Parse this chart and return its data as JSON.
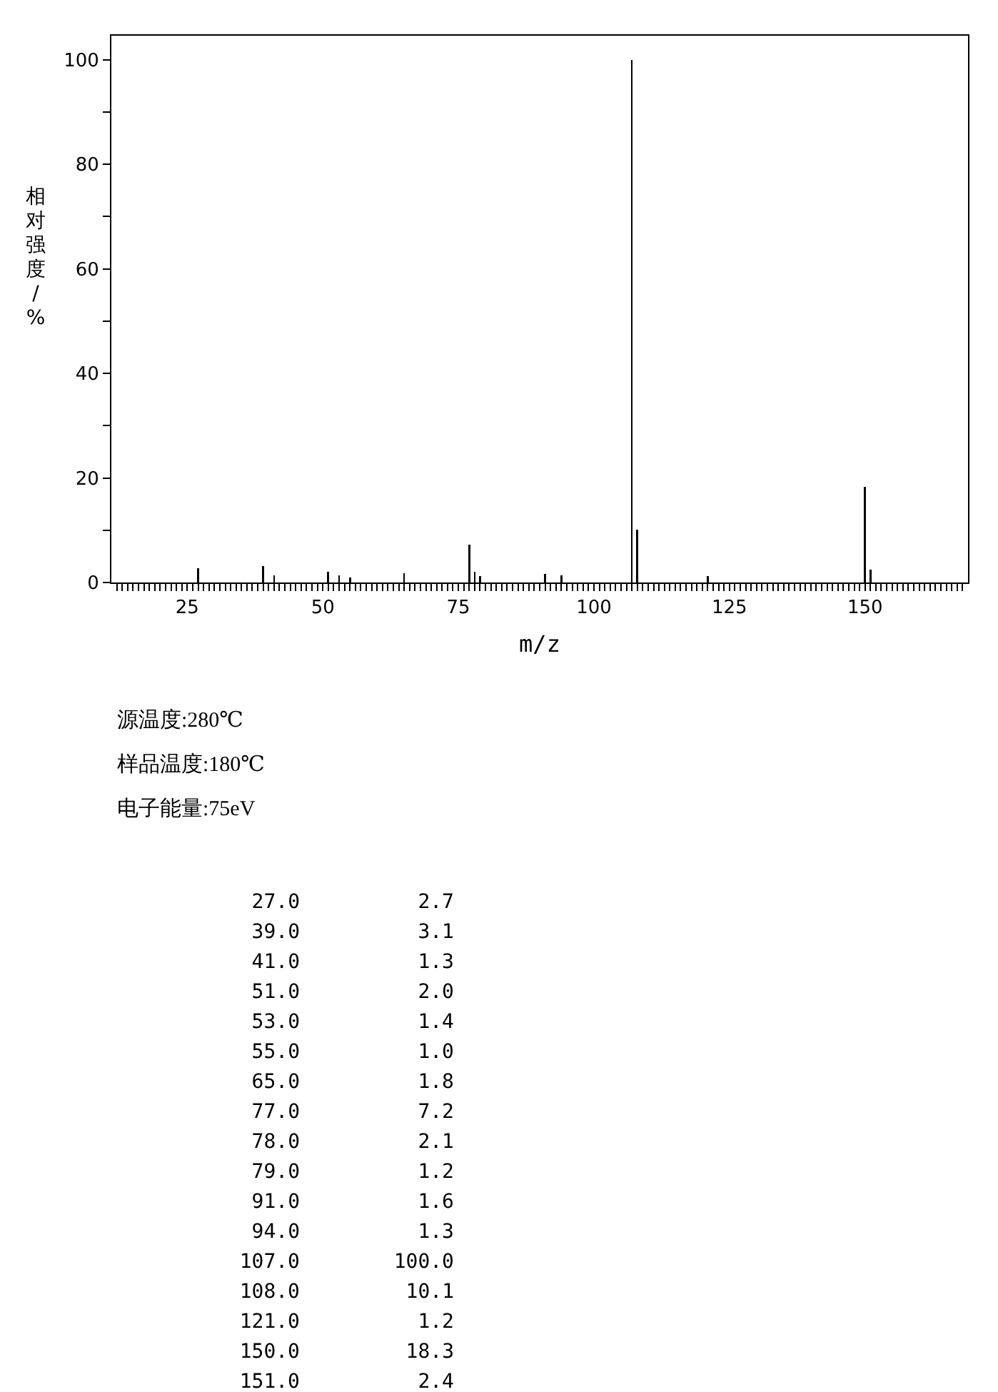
{
  "chart_data": {
    "type": "bar",
    "xlabel": "m/z",
    "ylabel": "相对强度/%",
    "x": [
      27,
      39,
      41,
      51,
      53,
      55,
      65,
      77,
      78,
      79,
      91,
      94,
      107,
      108,
      121,
      150,
      151
    ],
    "values": [
      2.7,
      3.1,
      1.3,
      2.0,
      1.4,
      1.0,
      1.8,
      7.2,
      2.1,
      1.2,
      1.6,
      1.3,
      100.0,
      10.1,
      1.2,
      18.3,
      2.4
    ],
    "color": "#000000",
    "xlim": [
      11,
      169
    ],
    "ylim": [
      0,
      104.6
    ],
    "xticks": [
      {
        "value": 12,
        "label": null
      },
      {
        "value": 13,
        "label": null
      },
      {
        "value": 14,
        "label": null
      },
      {
        "value": 15,
        "label": null
      },
      {
        "value": 16,
        "label": null
      },
      {
        "value": 17,
        "label": null
      },
      {
        "value": 18,
        "label": null
      },
      {
        "value": 19,
        "label": null
      },
      {
        "value": 20,
        "label": null
      },
      {
        "value": 21,
        "label": null
      },
      {
        "value": 22,
        "label": null
      },
      {
        "value": 23,
        "label": null
      },
      {
        "value": 24,
        "label": null
      },
      25,
      {
        "value": 26,
        "label": null
      },
      {
        "value": 27,
        "label": null
      },
      {
        "value": 28,
        "label": null
      },
      {
        "value": 29,
        "label": null
      },
      {
        "value": 30,
        "label": null
      },
      {
        "value": 31,
        "label": null
      },
      {
        "value": 32,
        "label": null
      },
      {
        "value": 33,
        "label": null
      },
      {
        "value": 34,
        "label": null
      },
      {
        "value": 35,
        "label": null
      },
      {
        "value": 36,
        "label": null
      },
      {
        "value": 37,
        "label": null
      },
      {
        "value": 38,
        "label": null
      },
      {
        "value": 39,
        "label": null
      },
      {
        "value": 40,
        "label": null
      },
      {
        "value": 41,
        "label": null
      },
      {
        "value": 42,
        "label": null
      },
      {
        "value": 43,
        "label": null
      },
      {
        "value": 44,
        "label": null
      },
      {
        "value": 45,
        "label": null
      },
      {
        "value": 46,
        "label": null
      },
      {
        "value": 47,
        "label": null
      },
      {
        "value": 48,
        "label": null
      },
      {
        "value": 49,
        "label": null
      },
      50,
      {
        "value": 51,
        "label": null
      },
      {
        "value": 52,
        "label": null
      },
      {
        "value": 53,
        "label": null
      },
      {
        "value": 54,
        "label": null
      },
      {
        "value": 55,
        "label": null
      },
      {
        "value": 56,
        "label": null
      },
      {
        "value": 57,
        "label": null
      },
      {
        "value": 58,
        "label": null
      },
      {
        "value": 59,
        "label": null
      },
      {
        "value": 60,
        "label": null
      },
      {
        "value": 61,
        "label": null
      },
      {
        "value": 62,
        "label": null
      },
      {
        "value": 63,
        "label": null
      },
      {
        "value": 64,
        "label": null
      },
      {
        "value": 65,
        "label": null
      },
      {
        "value": 66,
        "label": null
      },
      {
        "value": 67,
        "label": null
      },
      {
        "value": 68,
        "label": null
      },
      {
        "value": 69,
        "label": null
      },
      {
        "value": 70,
        "label": null
      },
      {
        "value": 71,
        "label": null
      },
      {
        "value": 72,
        "label": null
      },
      {
        "value": 73,
        "label": null
      },
      {
        "value": 74,
        "label": null
      },
      75,
      {
        "value": 76,
        "label": null
      },
      {
        "value": 77,
        "label": null
      },
      {
        "value": 78,
        "label": null
      },
      {
        "value": 79,
        "label": null
      },
      {
        "value": 80,
        "label": null
      },
      {
        "value": 81,
        "label": null
      },
      {
        "value": 82,
        "label": null
      },
      {
        "value": 83,
        "label": null
      },
      {
        "value": 84,
        "label": null
      },
      {
        "value": 85,
        "label": null
      },
      {
        "value": 86,
        "label": null
      },
      {
        "value": 87,
        "label": null
      },
      {
        "value": 88,
        "label": null
      },
      {
        "value": 89,
        "label": null
      },
      {
        "value": 90,
        "label": null
      },
      {
        "value": 91,
        "label": null
      },
      {
        "value": 92,
        "label": null
      },
      {
        "value": 93,
        "label": null
      },
      {
        "value": 94,
        "label": null
      },
      {
        "value": 95,
        "label": null
      },
      {
        "value": 96,
        "label": null
      },
      {
        "value": 97,
        "label": null
      },
      {
        "value": 98,
        "label": null
      },
      {
        "value": 99,
        "label": null
      },
      100,
      {
        "value": 101,
        "label": null
      },
      {
        "value": 102,
        "label": null
      },
      {
        "value": 103,
        "label": null
      },
      {
        "value": 104,
        "label": null
      },
      {
        "value": 105,
        "label": null
      },
      {
        "value": 106,
        "label": null
      },
      {
        "value": 107,
        "label": null
      },
      {
        "value": 108,
        "label": null
      },
      {
        "value": 109,
        "label": null
      },
      {
        "value": 110,
        "label": null
      },
      {
        "value": 111,
        "label": null
      },
      {
        "value": 112,
        "label": null
      },
      {
        "value": 113,
        "label": null
      },
      {
        "value": 114,
        "label": null
      },
      {
        "value": 115,
        "label": null
      },
      {
        "value": 116,
        "label": null
      },
      {
        "value": 117,
        "label": null
      },
      {
        "value": 118,
        "label": null
      },
      {
        "value": 119,
        "label": null
      },
      {
        "value": 120,
        "label": null
      },
      {
        "value": 121,
        "label": null
      },
      {
        "value": 122,
        "label": null
      },
      {
        "value": 123,
        "label": null
      },
      {
        "value": 124,
        "label": null
      },
      125,
      {
        "value": 126,
        "label": null
      },
      {
        "value": 127,
        "label": null
      },
      {
        "value": 128,
        "label": null
      },
      {
        "value": 129,
        "label": null
      },
      {
        "value": 130,
        "label": null
      },
      {
        "value": 131,
        "label": null
      },
      {
        "value": 132,
        "label": null
      },
      {
        "value": 133,
        "label": null
      },
      {
        "value": 134,
        "label": null
      },
      {
        "value": 135,
        "label": null
      },
      {
        "value": 136,
        "label": null
      },
      {
        "value": 137,
        "label": null
      },
      {
        "value": 138,
        "label": null
      },
      {
        "value": 139,
        "label": null
      },
      {
        "value": 140,
        "label": null
      },
      {
        "value": 141,
        "label": null
      },
      {
        "value": 142,
        "label": null
      },
      {
        "value": 143,
        "label": null
      },
      {
        "value": 144,
        "label": null
      },
      {
        "value": 145,
        "label": null
      },
      {
        "value": 146,
        "label": null
      },
      {
        "value": 147,
        "label": null
      },
      {
        "value": 148,
        "label": null
      },
      {
        "value": 149,
        "label": null
      },
      150,
      {
        "value": 151,
        "label": null
      },
      {
        "value": 152,
        "label": null
      },
      {
        "value": 153,
        "label": null
      },
      {
        "value": 154,
        "label": null
      },
      {
        "value": 155,
        "label": null
      },
      {
        "value": 156,
        "label": null
      },
      {
        "value": 157,
        "label": null
      },
      {
        "value": 158,
        "label": null
      },
      {
        "value": 159,
        "label": null
      },
      {
        "value": 160,
        "label": null
      },
      {
        "value": 161,
        "label": null
      },
      {
        "value": 162,
        "label": null
      },
      {
        "value": 163,
        "label": null
      },
      {
        "value": 164,
        "label": null
      },
      {
        "value": 165,
        "label": null
      },
      {
        "value": 166,
        "label": null
      },
      {
        "value": 167,
        "label": null
      },
      {
        "value": 168,
        "label": null
      }
    ],
    "yticks": [
      0,
      {
        "value": 10,
        "label": null
      },
      20,
      {
        "value": 30,
        "label": null
      },
      40,
      {
        "value": 50,
        "label": null
      },
      60,
      {
        "value": 70,
        "label": null
      },
      80,
      {
        "value": 90,
        "label": null
      },
      100
    ],
    "grid": false,
    "annotations": [
      "源温度:280℃",
      "样品温度:180℃",
      "电子能量:75eV",
      "27.0",
      "2.7",
      "39.0",
      "3.1",
      "41.0",
      "1.3",
      "51.0",
      "2.0",
      "53.0",
      "1.4",
      "55.0",
      "1.0",
      "65.0",
      "1.8",
      "77.0",
      "7.2",
      "78.0",
      "2.1",
      "79.0",
      "1.2",
      "91.0",
      "1.6",
      "94.0",
      "1.3",
      "107.0",
      "100.0",
      "108.0",
      "10.1",
      "121.0",
      "1.2",
      "150.0",
      "18.3",
      "151.0",
      "2.4"
    ]
  }
}
